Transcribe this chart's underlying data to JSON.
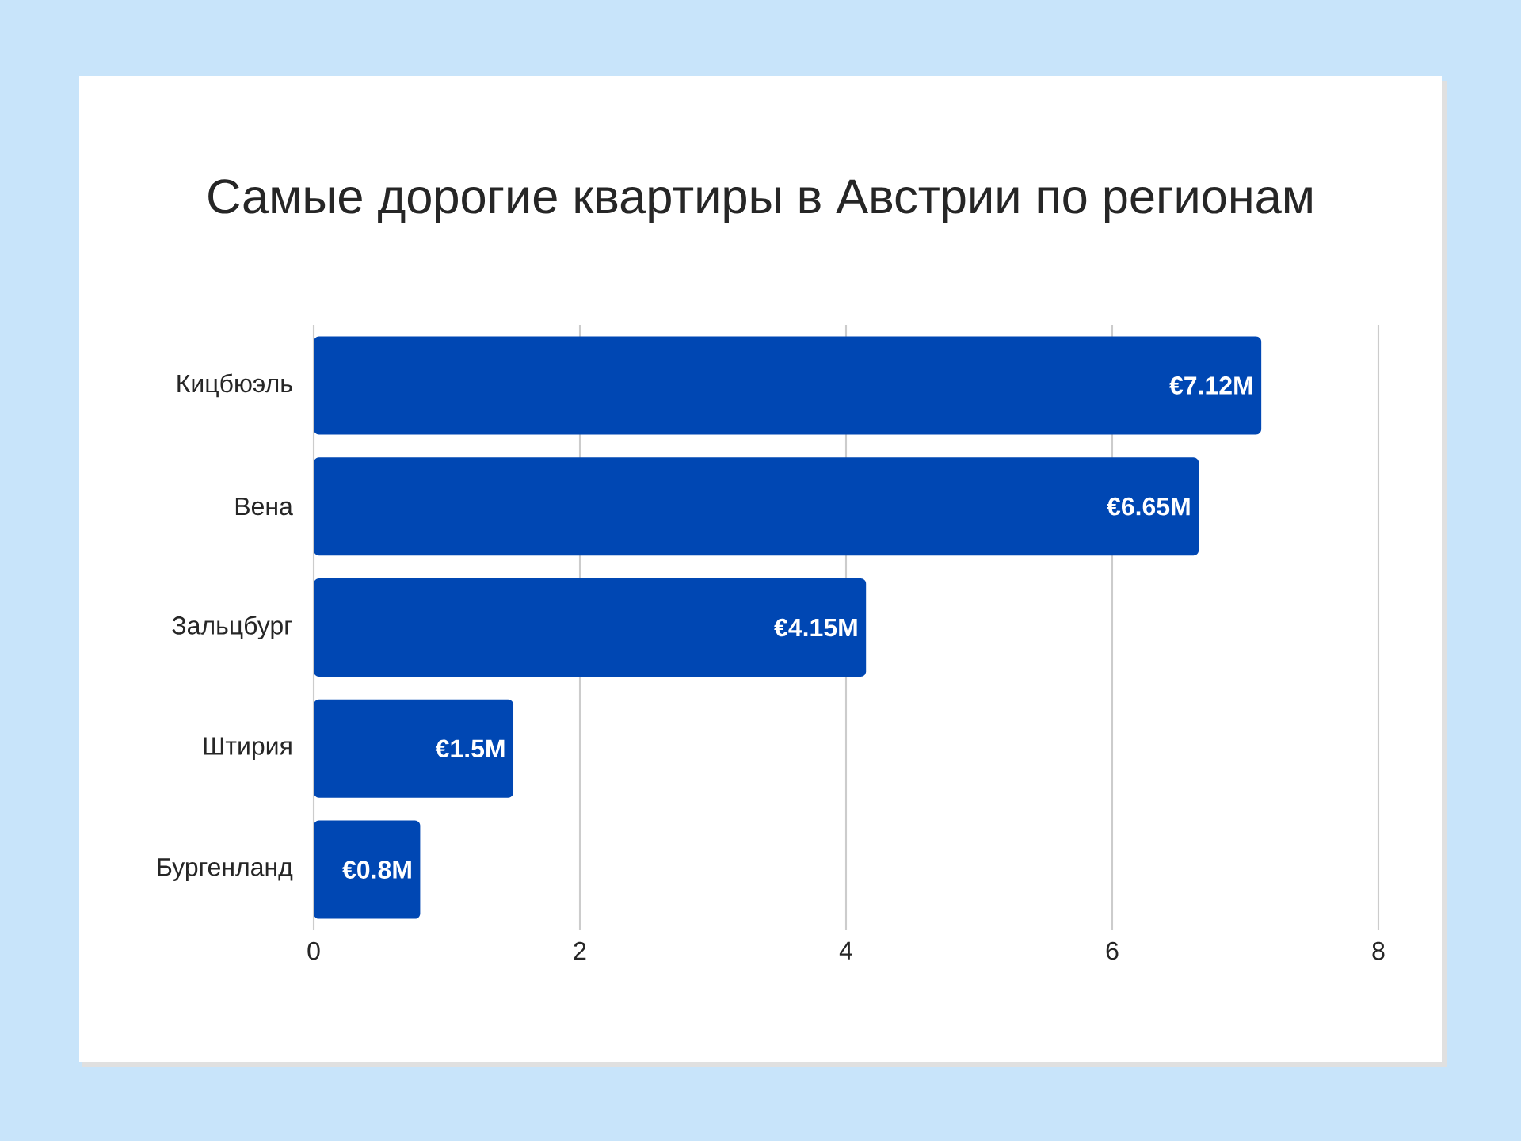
{
  "chart_data": {
    "type": "bar",
    "orientation": "horizontal",
    "title": "Самые дорогие квартиры в Австрии по регионам",
    "categories": [
      "Кицбюэль",
      "Вена",
      "Зальцбург",
      "Штирия",
      "Бургенланд"
    ],
    "values": [
      7.12,
      6.65,
      4.15,
      1.5,
      0.8
    ],
    "value_labels": [
      "€7.12M",
      "€6.65M",
      "€4.15M",
      "€1.5M",
      "€0.8M"
    ],
    "color": "#0047b3",
    "xlim": [
      0,
      8
    ],
    "xticks": [
      0,
      2,
      4,
      6,
      8
    ],
    "grid": "x"
  }
}
